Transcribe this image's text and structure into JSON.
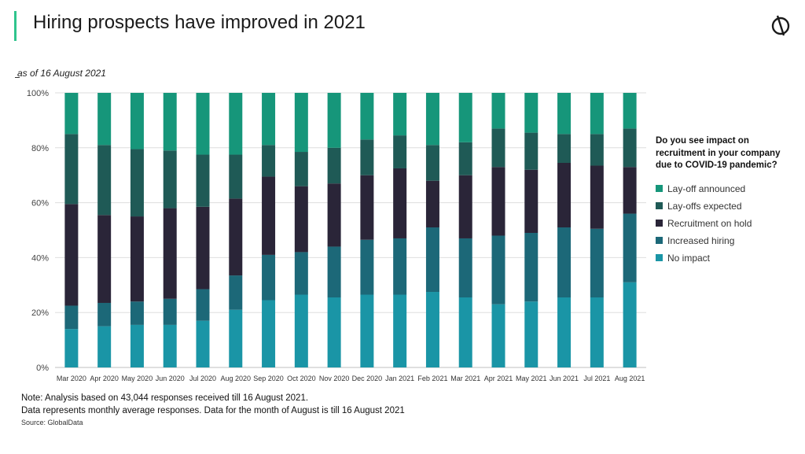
{
  "header": {
    "title": "Hiring prospects have improved in 2021",
    "accent_color": "#2fc48d",
    "logo_icon": "globaldata-logo-icon"
  },
  "subtitle": "as of 16 August 2021",
  "legend": {
    "title": "Do you see impact on recruitment in your company due to COVID-19 pandemic?",
    "items": [
      {
        "label": "Lay-off announced",
        "color": "#16967a"
      },
      {
        "label": "Lay-offs expected",
        "color": "#1f5a56"
      },
      {
        "label": "Recruitment on hold",
        "color": "#2a2538"
      },
      {
        "label": "Increased hiring",
        "color": "#1c6878"
      },
      {
        "label": "No impact",
        "color": "#1a95a6"
      }
    ]
  },
  "footer": {
    "note_line1": "Note: Analysis based on 43,044 responses received till 16 August 2021.",
    "note_line2": "Data represents monthly average responses. Data for the month of August is till 16 August 2021",
    "source": "Source: GlobalData"
  },
  "chart_data": {
    "type": "bar",
    "stacked": true,
    "percent": true,
    "categories": [
      "Mar 2020",
      "Apr 2020",
      "May 2020",
      "Jun 2020",
      "Jul 2020",
      "Aug 2020",
      "Sep 2020",
      "Oct 2020",
      "Nov 2020",
      "Dec 2020",
      "Jan 2021",
      "Feb 2021",
      "Mar 2021",
      "Apr 2021",
      "May 2021",
      "Jun 2021",
      "Jul 2021",
      "Aug 2021"
    ],
    "series": [
      {
        "name": "No impact",
        "color": "#1a95a6",
        "values": [
          14,
          15,
          15.5,
          15.5,
          17,
          21,
          24.5,
          26.5,
          25.5,
          26.5,
          26.5,
          27.5,
          25.5,
          23,
          24,
          25.5,
          25.5,
          31
        ]
      },
      {
        "name": "Increased hiring",
        "color": "#1c6878",
        "values": [
          8.5,
          8.5,
          8.5,
          9.5,
          11.5,
          12.5,
          16.5,
          15.5,
          18.5,
          20,
          20.5,
          23.5,
          21.5,
          25,
          25,
          25.5,
          25,
          25
        ]
      },
      {
        "name": "Recruitment on hold",
        "color": "#2a2538",
        "values": [
          37,
          32,
          31,
          33,
          30,
          28,
          28.5,
          24,
          23,
          23.5,
          25.5,
          17,
          23,
          25,
          23,
          23.5,
          23,
          17
        ]
      },
      {
        "name": "Lay-offs expected",
        "color": "#1f5a56",
        "values": [
          25.5,
          25.5,
          24.5,
          21,
          19,
          16,
          11.5,
          12.5,
          13,
          13,
          12,
          13,
          12,
          14,
          13.5,
          10.5,
          11.5,
          14
        ]
      },
      {
        "name": "Lay-off announced",
        "color": "#16967a",
        "values": [
          15,
          19,
          20.5,
          21,
          22.5,
          22.5,
          19,
          21.5,
          20,
          17,
          15.5,
          19,
          18,
          13,
          14.5,
          15,
          15,
          13
        ]
      }
    ],
    "y_ticks": [
      "0%",
      "20%",
      "40%",
      "60%",
      "80%",
      "100%"
    ],
    "ylim": [
      0,
      100
    ],
    "grid": true,
    "legend_position": "right"
  }
}
